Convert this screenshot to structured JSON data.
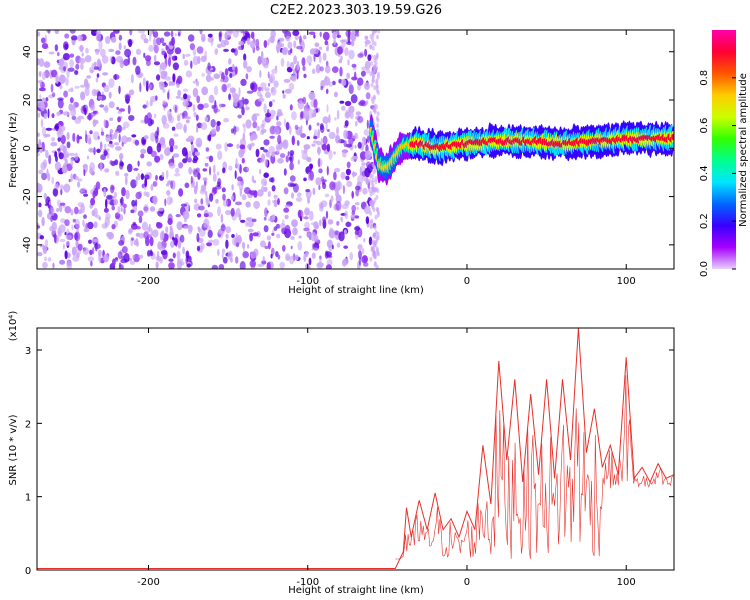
{
  "title": "C2E2.2023.303.19.59.G26",
  "chart_data": [
    {
      "type": "heatmap",
      "xlabel": "Height of straight line (km)",
      "ylabel": "Frequency (Hz)",
      "xlim": [
        -270,
        130
      ],
      "ylim": [
        -50,
        49
      ],
      "xticks": [
        -200,
        -100,
        0,
        100
      ],
      "yticks": [
        -40,
        -20,
        0,
        20,
        40
      ],
      "grid": false,
      "noise_region_x": [
        -270,
        -58
      ],
      "signal_track": {
        "x": [
          -60,
          -55,
          -50,
          -45,
          -40,
          -30,
          -20,
          0,
          20,
          40,
          60,
          80,
          100,
          130
        ],
        "y": [
          7,
          -7,
          -8,
          -3,
          1,
          2,
          0,
          2,
          3,
          3,
          2,
          3,
          4,
          4
        ]
      },
      "colorbar": {
        "label": "Normalized spectral amplitude",
        "range": [
          0.0,
          1.0
        ],
        "ticks": [
          "0.0",
          "0.2",
          "0.4",
          "0.6",
          "0.8"
        ],
        "colormap": [
          "#e8d0ff",
          "#a600ff",
          "#3800ff",
          "#0066ff",
          "#00e6ff",
          "#00ff8c",
          "#33ff00",
          "#ccff00",
          "#ffcc00",
          "#ff5500",
          "#ff0033",
          "#ff00aa"
        ]
      }
    },
    {
      "type": "line",
      "xlabel": "Height of straight line (km)",
      "ylabel": "SNR (10 * v/v)",
      "scale_label": "(x10⁴)",
      "xlim": [
        -270,
        130
      ],
      "ylim": [
        0,
        3.3
      ],
      "xticks": [
        -200,
        -100,
        0,
        100
      ],
      "yticks": [
        0,
        1,
        2,
        3
      ],
      "grid": false,
      "color": "#e8302a",
      "series": [
        {
          "x": [
            -270,
            -200,
            -100,
            -45,
            -40,
            -38,
            -35,
            -30,
            -25,
            -20,
            -15,
            -10,
            -5,
            0,
            5,
            10,
            15,
            20,
            25,
            30,
            35,
            40,
            45,
            50,
            55,
            60,
            65,
            70,
            75,
            80,
            85,
            90,
            95,
            100,
            105,
            110,
            115,
            120,
            125,
            130
          ],
          "y": [
            0.02,
            0.02,
            0.02,
            0.02,
            0.25,
            0.85,
            0.45,
            0.95,
            0.55,
            1.05,
            0.55,
            0.7,
            0.45,
            0.8,
            0.55,
            1.7,
            0.9,
            2.85,
            1.5,
            2.6,
            1.2,
            2.4,
            1.3,
            2.6,
            1.25,
            2.6,
            1.5,
            3.3,
            1.6,
            2.2,
            1.4,
            1.7,
            1.3,
            2.9,
            1.25,
            1.4,
            1.2,
            1.45,
            1.25,
            1.3
          ]
        }
      ]
    }
  ]
}
